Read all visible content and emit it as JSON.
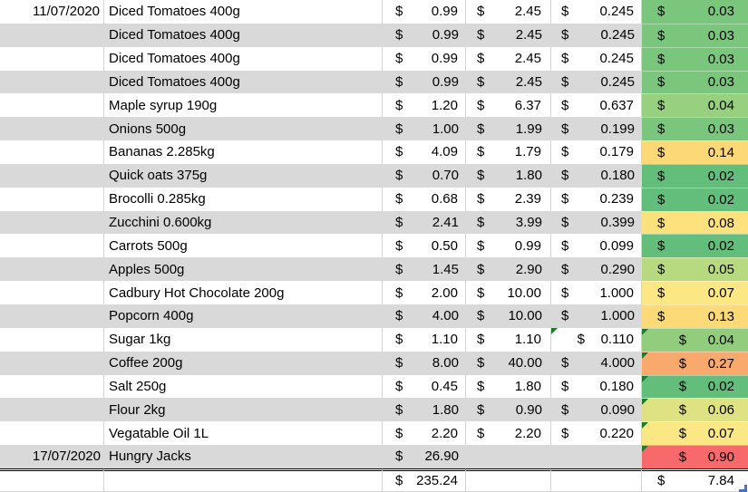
{
  "currency": "$",
  "totals": {
    "spent": "235.24",
    "per_serve": "7.84"
  },
  "colors": {
    "row_shade": "#D9D9D9",
    "grid_line": "#D4D4D4",
    "flag_green": "#1E7B2A",
    "handle_blue": "#4472C4",
    "scale_min_green": "#63BE7B",
    "scale_mid_yellow": "#FBE783",
    "scale_max_red": "#F8696B"
  },
  "rows": [
    {
      "date": "11/07/2020",
      "item": "Diced Tomatoes 400g",
      "price_paid": "0.99",
      "full_price": "2.45",
      "unit_price": "0.245",
      "cost_per_serve": "0.03",
      "serve_color": "#7BC67D",
      "flag_unit": false,
      "flag_serve": false
    },
    {
      "date": "",
      "item": "Diced Tomatoes 400g",
      "price_paid": "0.99",
      "full_price": "2.45",
      "unit_price": "0.245",
      "cost_per_serve": "0.03",
      "serve_color": "#7BC67D",
      "flag_unit": false,
      "flag_serve": false
    },
    {
      "date": "",
      "item": "Diced Tomatoes 400g",
      "price_paid": "0.99",
      "full_price": "2.45",
      "unit_price": "0.245",
      "cost_per_serve": "0.03",
      "serve_color": "#7BC67D",
      "flag_unit": false,
      "flag_serve": false
    },
    {
      "date": "",
      "item": "Diced Tomatoes 400g",
      "price_paid": "0.99",
      "full_price": "2.45",
      "unit_price": "0.245",
      "cost_per_serve": "0.03",
      "serve_color": "#7BC67D",
      "flag_unit": false,
      "flag_serve": false
    },
    {
      "date": "",
      "item": "Maple syrup 190g",
      "price_paid": "1.20",
      "full_price": "6.37",
      "unit_price": "0.637",
      "cost_per_serve": "0.04",
      "serve_color": "#97D07F",
      "flag_unit": false,
      "flag_serve": false
    },
    {
      "date": "",
      "item": "Onions 500g",
      "price_paid": "1.00",
      "full_price": "1.99",
      "unit_price": "0.199",
      "cost_per_serve": "0.03",
      "serve_color": "#7BC67D",
      "flag_unit": false,
      "flag_serve": false
    },
    {
      "date": "",
      "item": "Bananas 2.285kg",
      "price_paid": "4.09",
      "full_price": "1.79",
      "unit_price": "0.179",
      "cost_per_serve": "0.14",
      "serve_color": "#FCD876",
      "flag_unit": false,
      "flag_serve": false
    },
    {
      "date": "",
      "item": "Quick oats 375g",
      "price_paid": "0.70",
      "full_price": "1.80",
      "unit_price": "0.180",
      "cost_per_serve": "0.02",
      "serve_color": "#63BE7B",
      "flag_unit": false,
      "flag_serve": false
    },
    {
      "date": "",
      "item": "Brocolli 0.285kg",
      "price_paid": "0.68",
      "full_price": "2.39",
      "unit_price": "0.239",
      "cost_per_serve": "0.02",
      "serve_color": "#63BE7B",
      "flag_unit": false,
      "flag_serve": false
    },
    {
      "date": "",
      "item": "Zucchini 0.600kg",
      "price_paid": "2.41",
      "full_price": "3.99",
      "unit_price": "0.399",
      "cost_per_serve": "0.08",
      "serve_color": "#FCE17C",
      "flag_unit": false,
      "flag_serve": false
    },
    {
      "date": "",
      "item": "Carrots 500g",
      "price_paid": "0.50",
      "full_price": "0.99",
      "unit_price": "0.099",
      "cost_per_serve": "0.02",
      "serve_color": "#63BE7B",
      "flag_unit": false,
      "flag_serve": false
    },
    {
      "date": "",
      "item": "Apples 500g",
      "price_paid": "1.45",
      "full_price": "2.90",
      "unit_price": "0.290",
      "cost_per_serve": "0.05",
      "serve_color": "#B7DA80",
      "flag_unit": false,
      "flag_serve": false
    },
    {
      "date": "",
      "item": "Cadbury Hot Chocolate 200g",
      "price_paid": "2.00",
      "full_price": "10.00",
      "unit_price": "1.000",
      "cost_per_serve": "0.07",
      "serve_color": "#FBE783",
      "flag_unit": false,
      "flag_serve": false
    },
    {
      "date": "",
      "item": "Popcorn 400g",
      "price_paid": "4.00",
      "full_price": "10.00",
      "unit_price": "1.000",
      "cost_per_serve": "0.13",
      "serve_color": "#FCDA78",
      "flag_unit": false,
      "flag_serve": false
    },
    {
      "date": "",
      "item": "Sugar 1kg",
      "price_paid": "1.10",
      "full_price": "1.10",
      "unit_price": "0.110",
      "cost_per_serve": "0.04",
      "serve_color": "#92CD7E",
      "flag_unit": true,
      "flag_serve": true
    },
    {
      "date": "",
      "item": "Coffee 200g",
      "price_paid": "8.00",
      "full_price": "40.00",
      "unit_price": "4.000",
      "cost_per_serve": "0.27",
      "serve_color": "#FAA96D",
      "flag_unit": false,
      "flag_serve": true
    },
    {
      "date": "",
      "item": "Salt 250g",
      "price_paid": "0.45",
      "full_price": "1.80",
      "unit_price": "0.180",
      "cost_per_serve": "0.02",
      "serve_color": "#63BE7B",
      "flag_unit": false,
      "flag_serve": true
    },
    {
      "date": "",
      "item": "Flour 2kg",
      "price_paid": "1.80",
      "full_price": "0.90",
      "unit_price": "0.090",
      "cost_per_serve": "0.06",
      "serve_color": "#DFE283",
      "flag_unit": false,
      "flag_serve": true
    },
    {
      "date": "",
      "item": "Vegatable Oil 1L",
      "price_paid": "2.20",
      "full_price": "2.20",
      "unit_price": "0.220",
      "cost_per_serve": "0.07",
      "serve_color": "#FBE783",
      "flag_unit": false,
      "flag_serve": true
    },
    {
      "date": "17/07/2020",
      "item": "Hungry Jacks",
      "price_paid": "26.90",
      "full_price": "",
      "unit_price": "",
      "cost_per_serve": "0.90",
      "serve_color": "#F8696B",
      "flag_unit": false,
      "flag_serve": true
    }
  ]
}
